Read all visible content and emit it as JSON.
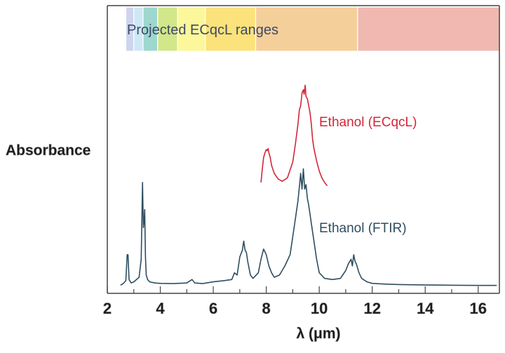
{
  "chart_data": {
    "type": "line",
    "title": "",
    "xlabel": "λ (μm)",
    "ylabel": "Absorbance",
    "xlim": [
      2,
      16.8
    ],
    "ylim": [
      0,
      1
    ],
    "xticks": [
      2,
      4,
      6,
      8,
      10,
      12,
      14,
      16
    ],
    "xtick_labels": [
      "2",
      "4",
      "6",
      "8",
      "10",
      "12",
      "14",
      "16"
    ],
    "grid": false,
    "legend": "none (series labeled inline)",
    "bands": {
      "label": "Projected ECqcL ranges",
      "segments": [
        {
          "x0": 2.7,
          "x1": 3.0,
          "color": "#cfd4ee"
        },
        {
          "x0": 3.0,
          "x1": 3.35,
          "color": "#cde8f5"
        },
        {
          "x0": 3.35,
          "x1": 3.9,
          "color": "#9ed7cf"
        },
        {
          "x0": 3.9,
          "x1": 4.65,
          "color": "#d2e68a"
        },
        {
          "x0": 4.65,
          "x1": 5.7,
          "color": "#fbf79a"
        },
        {
          "x0": 5.7,
          "x1": 7.6,
          "color": "#fbe27a"
        },
        {
          "x0": 7.6,
          "x1": 11.45,
          "color": "#f5cf99"
        },
        {
          "x0": 11.45,
          "x1": 16.8,
          "color": "#f0b8b0"
        }
      ]
    },
    "series": [
      {
        "name": "Ethanol (ECqcL)",
        "color": "#d3263a",
        "x": [
          7.8,
          7.85,
          7.9,
          7.95,
          8.0,
          8.03,
          8.07,
          8.1,
          8.15,
          8.2,
          8.3,
          8.45,
          8.6,
          8.8,
          9.0,
          9.1,
          9.2,
          9.25,
          9.3,
          9.35,
          9.4,
          9.43,
          9.47,
          9.5,
          9.55,
          9.6,
          9.65,
          9.7,
          9.75,
          9.8,
          9.9,
          10.0,
          10.1,
          10.2,
          10.3
        ],
        "y": [
          0.46,
          0.52,
          0.57,
          0.59,
          0.605,
          0.6,
          0.61,
          0.59,
          0.57,
          0.535,
          0.5,
          0.475,
          0.465,
          0.48,
          0.55,
          0.63,
          0.72,
          0.78,
          0.8,
          0.855,
          0.87,
          0.85,
          0.89,
          0.84,
          0.83,
          0.8,
          0.77,
          0.72,
          0.65,
          0.61,
          0.555,
          0.51,
          0.48,
          0.46,
          0.445
        ]
      },
      {
        "name": "Ethanol (FTIR)",
        "color": "#2e4e60",
        "x": [
          2.5,
          2.6,
          2.7,
          2.75,
          2.78,
          2.82,
          2.9,
          3.0,
          3.2,
          3.28,
          3.33,
          3.36,
          3.39,
          3.41,
          3.44,
          3.47,
          3.52,
          3.6,
          3.8,
          4.0,
          4.5,
          5.0,
          5.2,
          5.3,
          5.6,
          6.0,
          6.4,
          6.7,
          6.8,
          6.9,
          7.0,
          7.1,
          7.15,
          7.2,
          7.25,
          7.3,
          7.4,
          7.5,
          7.7,
          7.8,
          7.9,
          8.0,
          8.05,
          8.1,
          8.2,
          8.3,
          8.5,
          8.7,
          8.9,
          9.0,
          9.1,
          9.2,
          9.3,
          9.35,
          9.4,
          9.45,
          9.5,
          9.55,
          9.6,
          9.7,
          9.8,
          9.9,
          10.0,
          10.2,
          10.5,
          10.8,
          11.0,
          11.1,
          11.2,
          11.25,
          11.3,
          11.35,
          11.4,
          11.5,
          11.6,
          11.8,
          12.0,
          12.5,
          13.0,
          14.0,
          15.0,
          16.0,
          16.7
        ],
        "y": [
          0.005,
          0.012,
          0.025,
          0.14,
          0.14,
          0.03,
          0.015,
          0.02,
          0.04,
          0.12,
          0.46,
          0.26,
          0.29,
          0.34,
          0.13,
          0.05,
          0.03,
          0.02,
          0.015,
          0.013,
          0.012,
          0.015,
          0.03,
          0.015,
          0.012,
          0.02,
          0.025,
          0.03,
          0.06,
          0.05,
          0.13,
          0.16,
          0.2,
          0.16,
          0.15,
          0.11,
          0.05,
          0.035,
          0.06,
          0.12,
          0.165,
          0.14,
          0.115,
          0.09,
          0.06,
          0.04,
          0.05,
          0.09,
          0.14,
          0.22,
          0.3,
          0.38,
          0.5,
          0.43,
          0.52,
          0.43,
          0.45,
          0.39,
          0.36,
          0.28,
          0.2,
          0.12,
          0.06,
          0.035,
          0.03,
          0.035,
          0.07,
          0.1,
          0.12,
          0.09,
          0.14,
          0.11,
          0.1,
          0.06,
          0.035,
          0.02,
          0.013,
          0.01,
          0.008,
          0.006,
          0.005,
          0.004,
          0.004
        ]
      }
    ]
  }
}
